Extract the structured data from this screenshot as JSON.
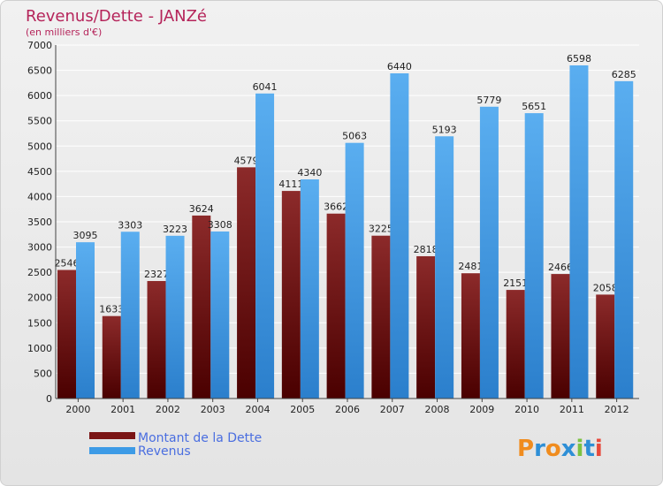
{
  "chart_data": {
    "type": "bar",
    "title": "Revenus/Dette - JANZé",
    "subtitle": "(en milliers d'€)",
    "categories": [
      "2000",
      "2001",
      "2002",
      "2003",
      "2004",
      "2005",
      "2006",
      "2007",
      "2008",
      "2009",
      "2010",
      "2011",
      "2012"
    ],
    "series": [
      {
        "name": "Montant de la Dette",
        "color": "#7a1414",
        "values": [
          2546,
          1633,
          2327,
          3624,
          4579,
          4111,
          3662,
          3225,
          2818,
          2481,
          2151,
          2466,
          2058
        ],
        "labels": [
          "2546",
          "1633",
          "2327",
          "3624",
          "4579",
          "4111",
          "3662",
          "3225",
          "2818",
          "2481",
          "2151",
          "2466",
          "2058"
        ]
      },
      {
        "name": "Revenus",
        "color": "#3d9be6",
        "values": [
          3095,
          3303,
          3223,
          3308,
          6041,
          4340,
          5063,
          6440,
          5193,
          5779,
          5651,
          6598,
          6285
        ],
        "labels": [
          "3095",
          "3303",
          "3223",
          "3308",
          "6041",
          "4340",
          "5063",
          "6440",
          "5193",
          "5779",
          "5651",
          "6598",
          "6285"
        ]
      }
    ],
    "ylim": [
      0,
      7000
    ],
    "yticks": [
      "0",
      "500",
      "1000",
      "1500",
      "2000",
      "2500",
      "3000",
      "3500",
      "4000",
      "4500",
      "5000",
      "5500",
      "6000",
      "6500",
      "7000"
    ],
    "grid": true,
    "legend_position": "bottom-left"
  },
  "logo": {
    "letters": [
      "P",
      "r",
      "o",
      "x",
      "i",
      "t",
      "i"
    ],
    "colors": [
      "#f08c1e",
      "#2e8fd6",
      "#f08c1e",
      "#2e8fd6",
      "#7cc242",
      "#2e8fd6",
      "#e84a3c"
    ]
  }
}
